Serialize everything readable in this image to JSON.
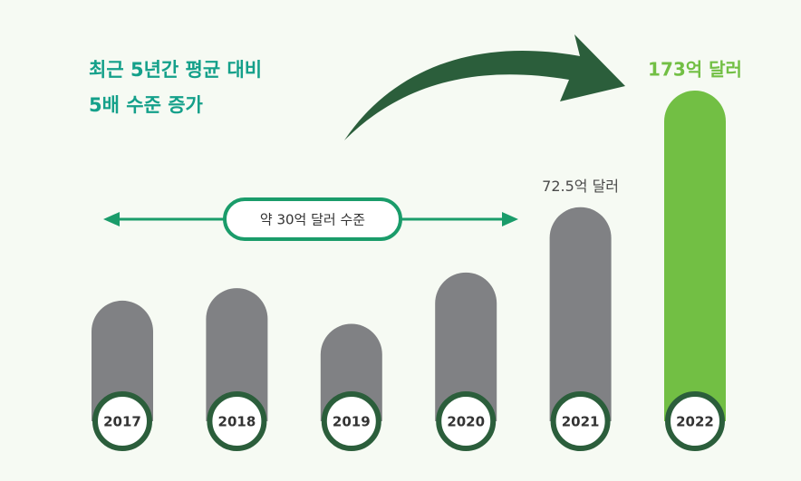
{
  "chart_data": {
    "type": "bar",
    "title": [
      "최근 5년간 평균 대비",
      "5배 수준 증가"
    ],
    "annotation": "약 30억 달러 수준",
    "categories": [
      "2017",
      "2018",
      "2019",
      "2020",
      "2021",
      "2022"
    ],
    "values": [
      23,
      28,
      15,
      35,
      72.5,
      173
    ],
    "value_labels": [
      null,
      null,
      null,
      null,
      "72.5억 달러",
      "173억 달러"
    ],
    "colors": [
      "#808184",
      "#808184",
      "#808184",
      "#808184",
      "#808184",
      "#72bf44"
    ],
    "label_colors": [
      null,
      null,
      null,
      null,
      "#4a4a4a",
      "#72bf44"
    ],
    "scale": "sqrt"
  }
}
